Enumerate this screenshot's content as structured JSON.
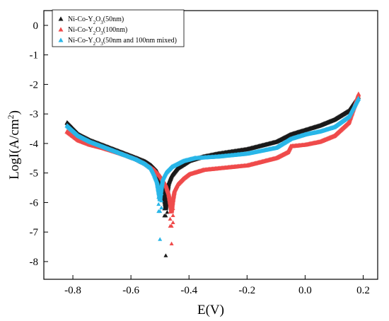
{
  "chart_data": {
    "type": "scatter",
    "xlabel": "E(V)",
    "ylabel_base": "LogI(A/cm",
    "ylabel_sup": "2",
    "ylabel_end": ")",
    "xlim": [
      -0.9,
      0.25
    ],
    "ylim": [
      -8.6,
      0.5
    ],
    "x_ticks": [
      -0.8,
      -0.6,
      -0.4,
      -0.2,
      0.0,
      0.2
    ],
    "x_tick_labels": [
      "-0.8",
      "-0.6",
      "-0.4",
      "-0.2",
      "0.0",
      "0.2"
    ],
    "y_ticks": [
      0,
      -1,
      -2,
      -3,
      -4,
      -5,
      -6,
      -7,
      -8
    ],
    "y_tick_labels": [
      "0",
      "-1",
      "-2",
      "-3",
      "-4",
      "-5",
      "-6",
      "-7",
      "-8"
    ],
    "grid": false,
    "legend_position": "top-left",
    "series": [
      {
        "name_base": "Ni-Co-Y",
        "name_sub1": "2",
        "name_mid": "O",
        "name_sub2": "3",
        "name_tail": "(50nm)",
        "color": "#1a1a1a",
        "ecorr": -0.48,
        "cathodic": [
          [
            -0.82,
            -3.3
          ],
          [
            -0.78,
            -3.7
          ],
          [
            -0.74,
            -3.9
          ],
          [
            -0.7,
            -4.05
          ],
          [
            -0.66,
            -4.2
          ],
          [
            -0.62,
            -4.35
          ],
          [
            -0.58,
            -4.5
          ],
          [
            -0.55,
            -4.62
          ],
          [
            -0.53,
            -4.75
          ],
          [
            -0.51,
            -4.95
          ],
          [
            -0.5,
            -5.2
          ],
          [
            -0.49,
            -5.5
          ],
          [
            -0.485,
            -5.8
          ],
          [
            -0.48,
            -6.2
          ]
        ],
        "anodic": [
          [
            -0.48,
            -6.2
          ],
          [
            -0.475,
            -5.7
          ],
          [
            -0.47,
            -5.35
          ],
          [
            -0.46,
            -5.1
          ],
          [
            -0.44,
            -4.85
          ],
          [
            -0.4,
            -4.6
          ],
          [
            -0.35,
            -4.45
          ],
          [
            -0.3,
            -4.35
          ],
          [
            -0.2,
            -4.2
          ],
          [
            -0.1,
            -3.95
          ],
          [
            -0.05,
            -3.7
          ],
          [
            0.0,
            -3.55
          ],
          [
            0.05,
            -3.4
          ],
          [
            0.1,
            -3.2
          ],
          [
            0.15,
            -2.9
          ],
          [
            0.185,
            -2.4
          ]
        ],
        "tail": [
          [
            -0.48,
            -6.45
          ],
          [
            -0.48,
            -7.8
          ]
        ]
      },
      {
        "name_base": "Ni-Co-Y",
        "name_sub1": "2",
        "name_mid": "O",
        "name_sub2": "3",
        "name_tail": "(100nm)",
        "color": "#ef4b4b",
        "ecorr": -0.46,
        "cathodic": [
          [
            -0.82,
            -3.6
          ],
          [
            -0.78,
            -3.9
          ],
          [
            -0.74,
            -4.05
          ],
          [
            -0.7,
            -4.15
          ],
          [
            -0.66,
            -4.27
          ],
          [
            -0.62,
            -4.4
          ],
          [
            -0.58,
            -4.55
          ],
          [
            -0.55,
            -4.7
          ],
          [
            -0.52,
            -4.9
          ],
          [
            -0.5,
            -5.1
          ],
          [
            -0.48,
            -5.4
          ],
          [
            -0.47,
            -5.7
          ],
          [
            -0.465,
            -6.0
          ],
          [
            -0.46,
            -6.3
          ]
        ],
        "anodic": [
          [
            -0.46,
            -6.3
          ],
          [
            -0.455,
            -5.9
          ],
          [
            -0.45,
            -5.6
          ],
          [
            -0.44,
            -5.4
          ],
          [
            -0.42,
            -5.2
          ],
          [
            -0.4,
            -5.05
          ],
          [
            -0.35,
            -4.9
          ],
          [
            -0.3,
            -4.85
          ],
          [
            -0.2,
            -4.75
          ],
          [
            -0.1,
            -4.5
          ],
          [
            -0.06,
            -4.3
          ],
          [
            -0.05,
            -4.1
          ],
          [
            0.0,
            -4.05
          ],
          [
            0.05,
            -3.95
          ],
          [
            0.1,
            -3.75
          ],
          [
            0.15,
            -3.3
          ],
          [
            0.185,
            -2.3
          ]
        ],
        "tail": [
          [
            -0.46,
            -6.8
          ],
          [
            -0.46,
            -7.4
          ]
        ]
      },
      {
        "name_base": "Ni-Co-Y",
        "name_sub1": "2",
        "name_mid": "O",
        "name_sub2": "3",
        "name_tail": "(50nm and 100nm mixed)",
        "color": "#29b6e8",
        "ecorr": -0.5,
        "cathodic": [
          [
            -0.82,
            -3.4
          ],
          [
            -0.78,
            -3.75
          ],
          [
            -0.74,
            -3.95
          ],
          [
            -0.7,
            -4.1
          ],
          [
            -0.66,
            -4.25
          ],
          [
            -0.62,
            -4.4
          ],
          [
            -0.58,
            -4.55
          ],
          [
            -0.55,
            -4.7
          ],
          [
            -0.53,
            -4.85
          ],
          [
            -0.52,
            -5.05
          ],
          [
            -0.51,
            -5.3
          ],
          [
            -0.505,
            -5.6
          ],
          [
            -0.5,
            -5.9
          ]
        ],
        "anodic": [
          [
            -0.5,
            -5.9
          ],
          [
            -0.495,
            -5.5
          ],
          [
            -0.49,
            -5.2
          ],
          [
            -0.48,
            -5.0
          ],
          [
            -0.46,
            -4.8
          ],
          [
            -0.42,
            -4.6
          ],
          [
            -0.38,
            -4.5
          ],
          [
            -0.3,
            -4.45
          ],
          [
            -0.2,
            -4.35
          ],
          [
            -0.1,
            -4.15
          ],
          [
            -0.05,
            -3.85
          ],
          [
            0.0,
            -3.7
          ],
          [
            0.05,
            -3.6
          ],
          [
            0.1,
            -3.45
          ],
          [
            0.15,
            -3.1
          ],
          [
            0.185,
            -2.45
          ]
        ],
        "tail": [
          [
            -0.5,
            -6.3
          ],
          [
            -0.5,
            -7.25
          ]
        ]
      }
    ]
  }
}
